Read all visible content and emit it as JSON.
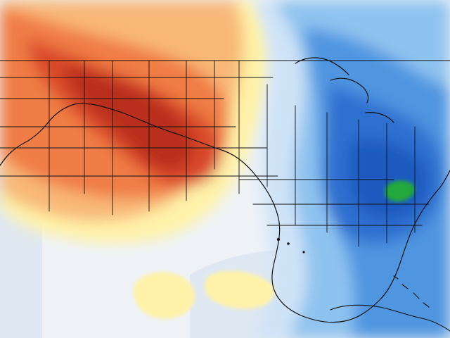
{
  "map": {
    "type": "temperature-anomaly-map",
    "region": "United States",
    "has_visible_text": false,
    "colors": {
      "background_land": "#eef2f7",
      "water": "#dfe8f2",
      "warm_light": "#fff2a8",
      "warm_mid": "#f8b878",
      "warm_strong": "#f07d45",
      "warm_peak": "#d9482a",
      "warm_extreme": "#b92f1d",
      "cool_light": "#cfe3f7",
      "cool_mid": "#8fc3ef",
      "cool_strong": "#4f95e0",
      "cool_deep": "#2d6fd0",
      "cool_extreme": "#1f5ac0",
      "green_anomaly": "#22a83a",
      "borders": "#111111"
    },
    "features": [
      "warm-anomaly-west",
      "warm-anomaly-plains-peak",
      "cool-anomaly-east",
      "cool-anomaly-southeast",
      "green-anomaly-north-carolina",
      "state-borders",
      "coastlines",
      "great-lakes"
    ]
  }
}
